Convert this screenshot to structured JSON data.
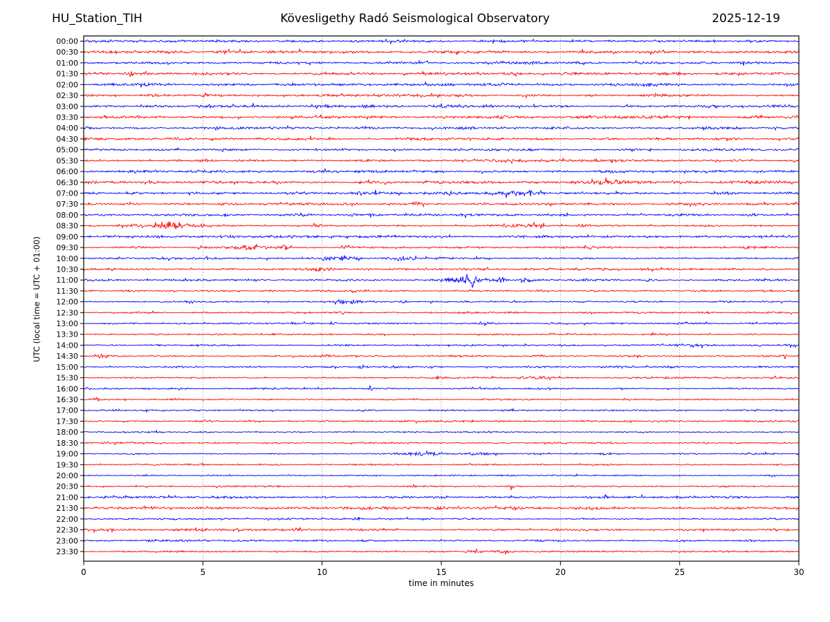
{
  "header": {
    "station": "HU_Station_TIH",
    "observatory": "Kövesligethy Radó Seismological Observatory",
    "date": "2025-12-19"
  },
  "chart_data": {
    "type": "line",
    "subtype": "helicorder-day-plot",
    "title": "HU_Station_TIH — Kövesligethy Radó Seismological Observatory — 2025-12-19",
    "xlabel": "time in minutes",
    "ylabel": "UTC (local time = UTC + 01:00)",
    "x_range": [
      0,
      30
    ],
    "x_ticks": [
      0,
      5,
      10,
      15,
      20,
      25,
      30
    ],
    "grid": "dotted vertical gridlines at 5-minute intervals",
    "legend": "none",
    "trace_colors": {
      "blue": "#0000ff",
      "red": "#ff0000"
    },
    "frame_color": "#000000",
    "gridline_color": "#666666",
    "rows": [
      {
        "label": "00:00",
        "color": "blue",
        "noise": 1.9,
        "events": []
      },
      {
        "label": "00:30",
        "color": "red",
        "noise": 1.9,
        "events": []
      },
      {
        "label": "01:00",
        "color": "blue",
        "noise": 1.8,
        "events": []
      },
      {
        "label": "01:30",
        "color": "red",
        "noise": 1.8,
        "events": []
      },
      {
        "label": "02:00",
        "color": "blue",
        "noise": 1.9,
        "events": [
          {
            "t": 23.6,
            "dur": 2.0,
            "amp": 1.2
          }
        ]
      },
      {
        "label": "02:30",
        "color": "red",
        "noise": 1.8,
        "events": []
      },
      {
        "label": "03:00",
        "color": "blue",
        "noise": 2.0,
        "events": []
      },
      {
        "label": "03:30",
        "color": "red",
        "noise": 1.9,
        "events": []
      },
      {
        "label": "04:00",
        "color": "blue",
        "noise": 1.9,
        "events": []
      },
      {
        "label": "04:30",
        "color": "red",
        "noise": 1.9,
        "events": []
      },
      {
        "label": "05:00",
        "color": "blue",
        "noise": 1.7,
        "events": []
      },
      {
        "label": "05:30",
        "color": "red",
        "noise": 1.6,
        "events": [
          {
            "t": 17.8,
            "dur": 3.0,
            "amp": 1.8
          }
        ]
      },
      {
        "label": "06:00",
        "color": "blue",
        "noise": 2.0,
        "events": []
      },
      {
        "label": "06:30",
        "color": "red",
        "noise": 1.8,
        "events": [
          {
            "t": 22.3,
            "dur": 2.2,
            "amp": 2.6
          },
          {
            "t": 28.8,
            "dur": 2.0,
            "amp": 1.8
          }
        ]
      },
      {
        "label": "07:00",
        "color": "blue",
        "noise": 1.9,
        "events": [
          {
            "t": 18.3,
            "dur": 1.5,
            "amp": 2.6
          }
        ]
      },
      {
        "label": "07:30",
        "color": "red",
        "noise": 1.6,
        "events": [
          {
            "t": 14.0,
            "dur": 0.5,
            "amp": 2.8
          }
        ]
      },
      {
        "label": "08:00",
        "color": "blue",
        "noise": 1.9,
        "events": []
      },
      {
        "label": "08:30",
        "color": "red",
        "noise": 1.5,
        "events": [
          {
            "t": 3.6,
            "dur": 1.6,
            "amp": 6.5
          },
          {
            "t": 2.1,
            "dur": 0.5,
            "amp": 1.8
          },
          {
            "t": 4.9,
            "dur": 0.5,
            "amp": 2.0
          },
          {
            "t": 9.8,
            "dur": 0.8,
            "amp": 1.4
          },
          {
            "t": 18.3,
            "dur": 2.5,
            "amp": 1.2
          },
          {
            "t": 21.0,
            "dur": 0.5,
            "amp": 2.2
          }
        ]
      },
      {
        "label": "09:00",
        "color": "blue",
        "noise": 1.7,
        "events": []
      },
      {
        "label": "09:30",
        "color": "red",
        "noise": 1.4,
        "events": [
          {
            "t": 7.2,
            "dur": 1.2,
            "amp": 4.5
          },
          {
            "t": 8.4,
            "dur": 0.5,
            "amp": 3.8
          },
          {
            "t": 6.4,
            "dur": 0.3,
            "amp": 2.2
          },
          {
            "t": 11.0,
            "dur": 0.4,
            "amp": 3.2
          },
          {
            "t": 27.8,
            "dur": 1.0,
            "amp": 1.5
          }
        ]
      },
      {
        "label": "10:00",
        "color": "blue",
        "noise": 1.5,
        "events": [
          {
            "t": 10.9,
            "dur": 1.8,
            "amp": 2.8
          },
          {
            "t": 13.4,
            "dur": 0.9,
            "amp": 2.6
          }
        ]
      },
      {
        "label": "10:30",
        "color": "red",
        "noise": 1.4,
        "events": [
          {
            "t": 9.9,
            "dur": 1.2,
            "amp": 2.5
          },
          {
            "t": 23.8,
            "dur": 0.4,
            "amp": 2.4
          }
        ]
      },
      {
        "label": "11:00",
        "color": "blue",
        "noise": 1.5,
        "events": [
          {
            "t": 15.8,
            "dur": 1.2,
            "amp": 5.5
          },
          {
            "t": 16.4,
            "dur": 0.35,
            "amp": 9.0
          },
          {
            "t": 17.5,
            "dur": 0.6,
            "amp": 3.2
          },
          {
            "t": 18.6,
            "dur": 0.5,
            "amp": 2.8
          },
          {
            "t": 19.4,
            "dur": 0.4,
            "amp": 1.8
          },
          {
            "t": 23.7,
            "dur": 0.5,
            "amp": 2.0
          }
        ]
      },
      {
        "label": "11:30",
        "color": "red",
        "noise": 1.3,
        "events": [
          {
            "t": 11.3,
            "dur": 0.3,
            "amp": 2.2
          },
          {
            "t": 1.8,
            "dur": 0.4,
            "amp": 1.6
          }
        ]
      },
      {
        "label": "12:00",
        "color": "blue",
        "noise": 1.3,
        "events": [
          {
            "t": 11.2,
            "dur": 1.6,
            "amp": 2.2
          },
          {
            "t": 13.4,
            "dur": 0.35,
            "amp": 2.6
          }
        ]
      },
      {
        "label": "12:30",
        "color": "red",
        "noise": 1.3,
        "events": []
      },
      {
        "label": "13:00",
        "color": "blue",
        "noise": 1.2,
        "events": [
          {
            "t": 10.5,
            "dur": 0.3,
            "amp": 3.2
          },
          {
            "t": 16.8,
            "dur": 0.8,
            "amp": 1.2
          }
        ]
      },
      {
        "label": "13:30",
        "color": "red",
        "noise": 1.2,
        "events": []
      },
      {
        "label": "14:00",
        "color": "blue",
        "noise": 1.3,
        "events": [
          {
            "t": 20.3,
            "dur": 1.2,
            "amp": 1.5
          },
          {
            "t": 25.5,
            "dur": 2.0,
            "amp": 1.4
          },
          {
            "t": 29.6,
            "dur": 0.8,
            "amp": 1.6
          }
        ]
      },
      {
        "label": "14:30",
        "color": "red",
        "noise": 1.2,
        "events": [
          {
            "t": 0.7,
            "dur": 0.8,
            "amp": 2.0
          },
          {
            "t": 29.4,
            "dur": 0.3,
            "amp": 2.8
          }
        ]
      },
      {
        "label": "15:00",
        "color": "blue",
        "noise": 1.3,
        "events": [
          {
            "t": 11.7,
            "dur": 0.5,
            "amp": 2.2
          },
          {
            "t": 22.6,
            "dur": 1.0,
            "amp": 1.2
          }
        ]
      },
      {
        "label": "15:30",
        "color": "red",
        "noise": 1.2,
        "events": [
          {
            "t": 18.9,
            "dur": 1.4,
            "amp": 2.0
          }
        ]
      },
      {
        "label": "16:00",
        "color": "blue",
        "noise": 1.2,
        "events": [
          {
            "t": 12.0,
            "dur": 0.4,
            "amp": 2.0
          }
        ]
      },
      {
        "label": "16:30",
        "color": "red",
        "noise": 1.1,
        "events": [
          {
            "t": 0.5,
            "dur": 0.4,
            "amp": 2.2
          },
          {
            "t": 1.8,
            "dur": 0.3,
            "amp": 1.5
          },
          {
            "t": 3.6,
            "dur": 0.5,
            "amp": 1.2
          }
        ]
      },
      {
        "label": "17:00",
        "color": "blue",
        "noise": 1.2,
        "events": []
      },
      {
        "label": "17:30",
        "color": "red",
        "noise": 1.2,
        "events": []
      },
      {
        "label": "18:00",
        "color": "blue",
        "noise": 1.1,
        "events": []
      },
      {
        "label": "18:30",
        "color": "red",
        "noise": 1.2,
        "events": [
          {
            "t": 1.0,
            "dur": 0.8,
            "amp": 1.4
          }
        ]
      },
      {
        "label": "19:00",
        "color": "blue",
        "noise": 1.2,
        "events": [
          {
            "t": 14.2,
            "dur": 1.4,
            "amp": 2.2
          },
          {
            "t": 16.5,
            "dur": 1.2,
            "amp": 2.0
          },
          {
            "t": 19.0,
            "dur": 0.4,
            "amp": 1.8
          },
          {
            "t": 22.0,
            "dur": 0.8,
            "amp": 1.6
          }
        ]
      },
      {
        "label": "19:30",
        "color": "red",
        "noise": 1.1,
        "events": []
      },
      {
        "label": "20:00",
        "color": "blue",
        "noise": 1.0,
        "events": []
      },
      {
        "label": "20:30",
        "color": "red",
        "noise": 1.1,
        "events": [
          {
            "t": 17.9,
            "dur": 0.5,
            "amp": 2.0
          }
        ]
      },
      {
        "label": "21:00",
        "color": "blue",
        "noise": 1.6,
        "events": []
      },
      {
        "label": "21:30",
        "color": "red",
        "noise": 2.0,
        "events": []
      },
      {
        "label": "22:00",
        "color": "blue",
        "noise": 1.3,
        "events": [
          {
            "t": 11.5,
            "dur": 0.3,
            "amp": 2.5
          }
        ]
      },
      {
        "label": "22:30",
        "color": "red",
        "noise": 1.7,
        "events": []
      },
      {
        "label": "23:00",
        "color": "blue",
        "noise": 1.4,
        "events": []
      },
      {
        "label": "23:30",
        "color": "red",
        "noise": 1.2,
        "events": [
          {
            "t": 16.3,
            "dur": 1.0,
            "amp": 2.2
          },
          {
            "t": 17.6,
            "dur": 0.9,
            "amp": 2.2
          }
        ]
      }
    ]
  }
}
